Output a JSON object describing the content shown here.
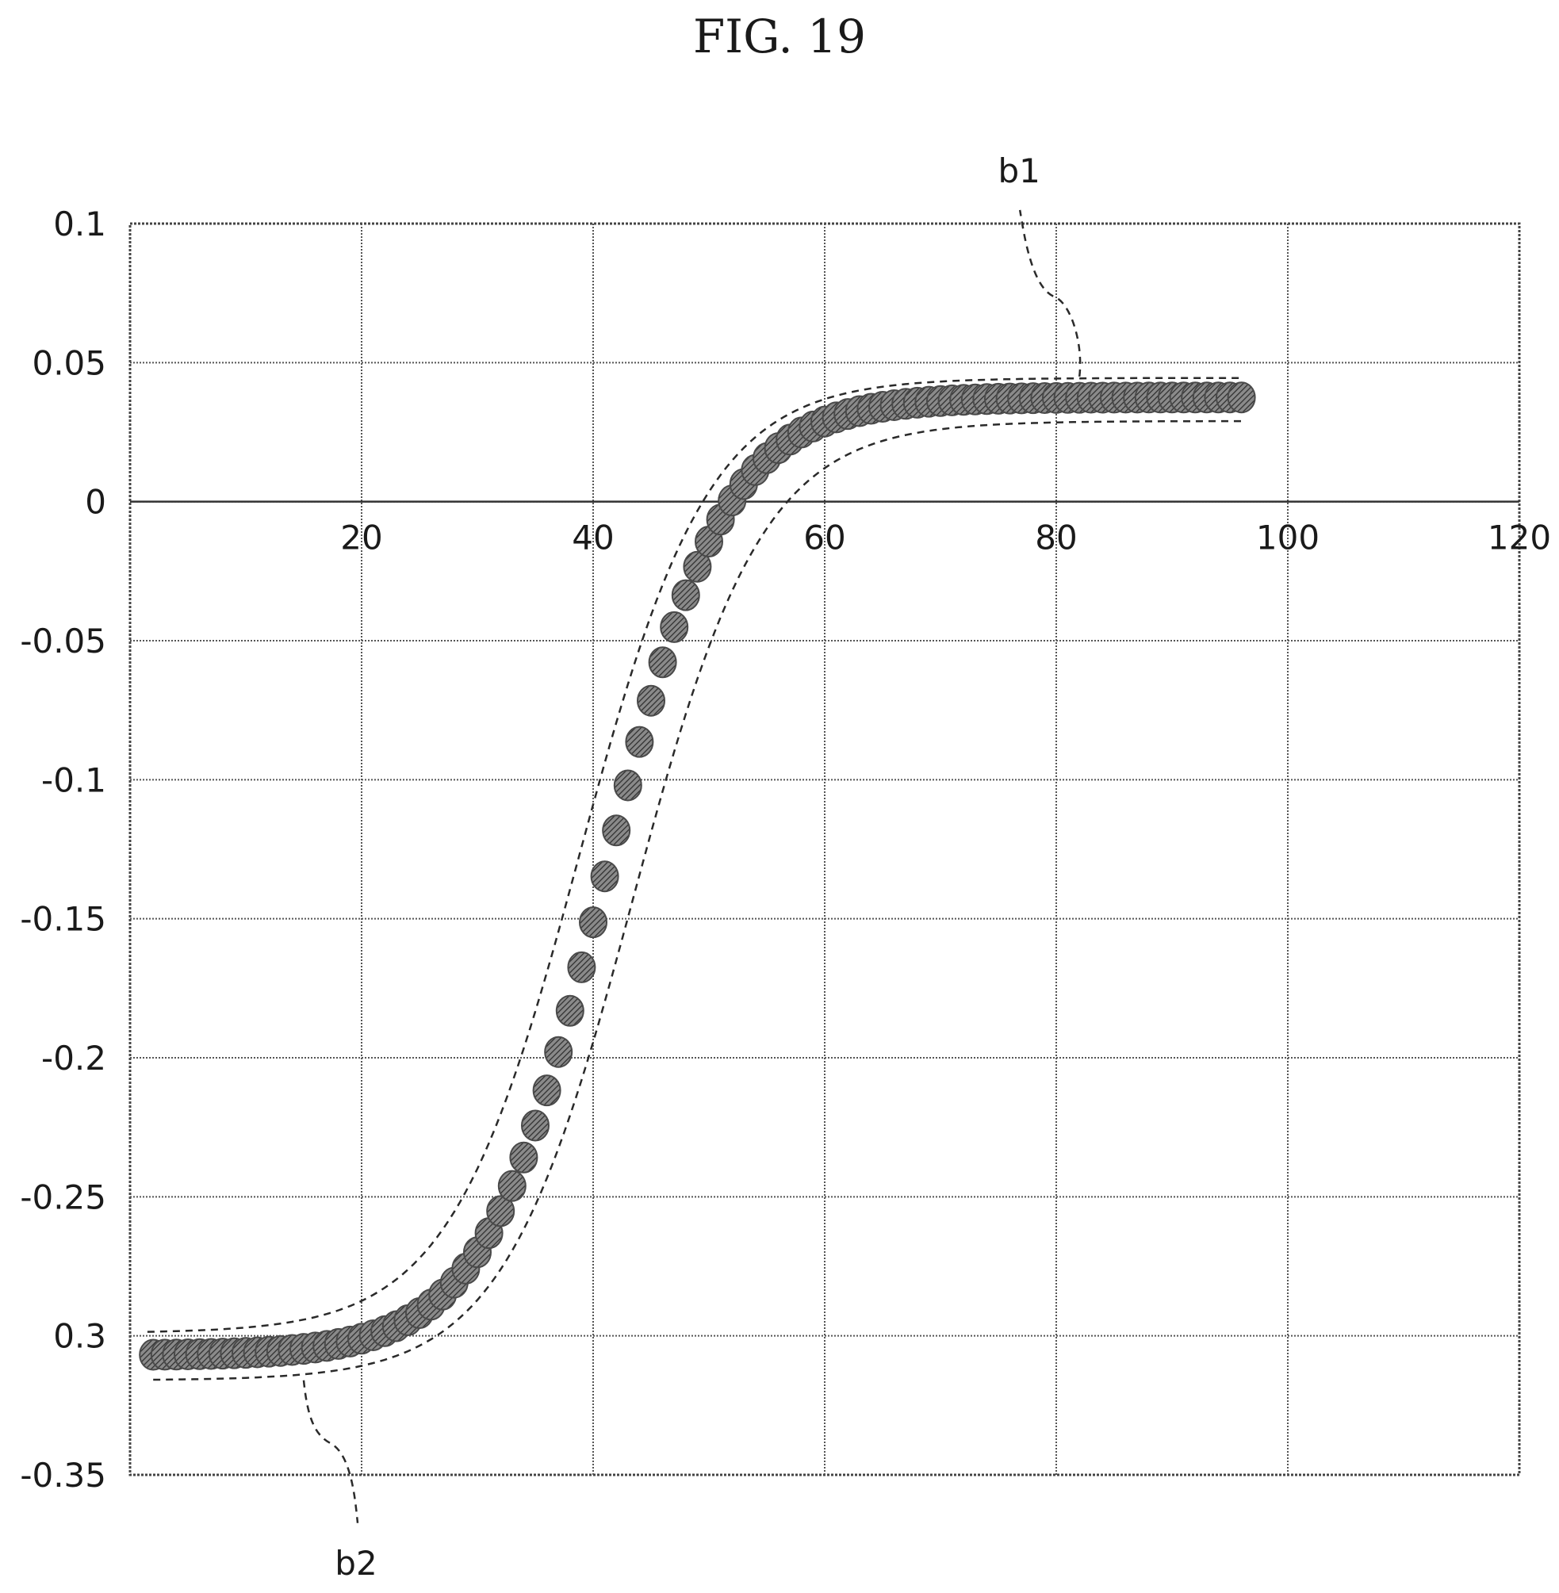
{
  "figure": {
    "title": "FIG. 19"
  },
  "chart_data": {
    "type": "scatter",
    "title": "FIG. 19",
    "xlabel": "",
    "ylabel": "",
    "xlim": [
      0,
      120
    ],
    "ylim": [
      -0.35,
      0.1
    ],
    "x_ticks": [
      {
        "value": 20,
        "label": "20"
      },
      {
        "value": 40,
        "label": "40"
      },
      {
        "value": 60,
        "label": "60"
      },
      {
        "value": 80,
        "label": "80"
      },
      {
        "value": 100,
        "label": "100"
      },
      {
        "value": 120,
        "label": "120"
      }
    ],
    "y_ticks": [
      {
        "value": 0.1,
        "label": "0.1"
      },
      {
        "value": 0.05,
        "label": "0.05"
      },
      {
        "value": 0,
        "label": "0"
      },
      {
        "value": -0.05,
        "label": "-0.05"
      },
      {
        "value": -0.1,
        "label": "-0.1"
      },
      {
        "value": -0.15,
        "label": "-0.15"
      },
      {
        "value": -0.2,
        "label": "-0.2"
      },
      {
        "value": -0.25,
        "label": "-0.25"
      },
      {
        "value": -0.3,
        "label": "0.3"
      },
      {
        "value": -0.35,
        "label": "-0.35"
      }
    ],
    "grid": true,
    "curve_model": {
      "type": "logistic",
      "lower": -0.307,
      "upper": 0.0375,
      "midpoint": 41.0,
      "scale": 5.2,
      "x_start": 2,
      "x_end": 96,
      "x_step": 1
    },
    "band_upper": {
      "type": "logistic",
      "lower": -0.299,
      "upper": 0.0445,
      "midpoint": 38.8,
      "scale": 5.6,
      "x_start": 1.5,
      "x_end": 96
    },
    "band_lower": {
      "type": "logistic",
      "lower": -0.316,
      "upper": 0.029,
      "midpoint": 43.4,
      "scale": 5.6,
      "x_start": 2,
      "x_end": 96
    },
    "annotations": [
      {
        "label": "b1",
        "target": "band_upper",
        "anchor_x": 82,
        "anchor_y": 0.045
      },
      {
        "label": "b2",
        "target": "band_lower",
        "anchor_x": 15,
        "anchor_y": -0.316
      }
    ]
  }
}
